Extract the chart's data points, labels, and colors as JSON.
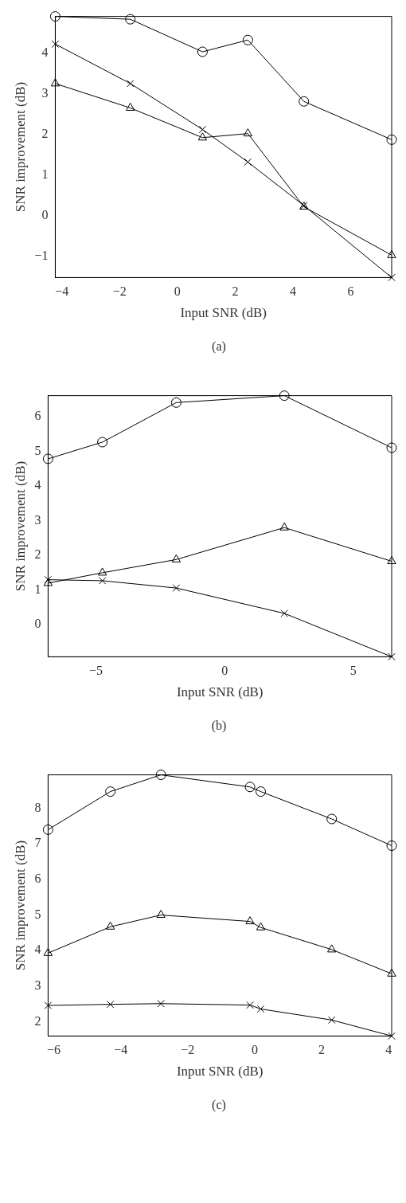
{
  "chart_data": [
    {
      "type": "line",
      "xlabel": "Input SNR (dB)",
      "ylabel": "SNR improvement (dB)",
      "annotations": [
        "(a)"
      ],
      "xlim": [
        -4.23,
        7.42
      ],
      "xticks": [
        -4,
        -2,
        0,
        2,
        4,
        6
      ],
      "ylim": [
        -1.52,
        4.9
      ],
      "yticks": [
        -1,
        0,
        1,
        2,
        3,
        4
      ],
      "legend": false,
      "x": [
        -4.23,
        -1.63,
        0.87,
        2.44,
        4.38,
        7.42
      ],
      "series": [
        {
          "marker": "circle",
          "color": "#000000",
          "values": [
            4.9,
            4.83,
            4.03,
            4.32,
            2.81,
            1.87
          ]
        },
        {
          "marker": "triangle",
          "color": "#000000",
          "values": [
            3.25,
            2.65,
            1.92,
            2.02,
            0.22,
            -0.97
          ]
        },
        {
          "marker": "cross",
          "color": "#000000",
          "values": [
            4.22,
            3.25,
            2.12,
            1.32,
            0.25,
            -1.52
          ]
        }
      ]
    },
    {
      "type": "line",
      "xlabel": "Input SNR (dB)",
      "ylabel": "SNR improvement (dB)",
      "annotations": [
        "(b)"
      ],
      "xlim": [
        -6.86,
        6.49
      ],
      "xticks": [
        -5,
        0,
        5
      ],
      "ylim": [
        -0.92,
        6.6
      ],
      "yticks": [
        0,
        1,
        2,
        3,
        4,
        5,
        6
      ],
      "legend": false,
      "x": [
        -6.86,
        -4.75,
        -1.88,
        2.32,
        6.49
      ],
      "series": [
        {
          "marker": "circle",
          "color": "#000000",
          "values": [
            4.78,
            5.26,
            6.4,
            6.6,
            5.1
          ]
        },
        {
          "marker": "triangle",
          "color": "#000000",
          "values": [
            1.2,
            1.5,
            1.88,
            2.8,
            1.83
          ]
        },
        {
          "marker": "cross",
          "color": "#000000",
          "values": [
            1.3,
            1.27,
            1.06,
            0.33,
            -0.92
          ]
        }
      ]
    },
    {
      "type": "line",
      "xlabel": "Input SNR (dB)",
      "ylabel": "SNR improvement (dB)",
      "annotations": [
        "(c)"
      ],
      "xlim": [
        -6.17,
        4.09
      ],
      "xticks": [
        -6,
        -4,
        -2,
        0,
        2,
        4
      ],
      "ylim": [
        1.6,
        8.94
      ],
      "yticks": [
        2,
        3,
        4,
        5,
        6,
        7,
        8
      ],
      "legend": false,
      "x": [
        -6.17,
        -4.31,
        -2.8,
        -0.14,
        0.18,
        2.3,
        4.09
      ],
      "series": [
        {
          "marker": "circle",
          "color": "#000000",
          "values": [
            7.4,
            8.47,
            8.94,
            8.6,
            8.47,
            7.7,
            6.95
          ]
        },
        {
          "marker": "triangle",
          "color": "#000000",
          "values": [
            3.93,
            4.67,
            5.0,
            4.82,
            4.65,
            4.03,
            3.35
          ]
        },
        {
          "marker": "cross",
          "color": "#000000",
          "values": [
            2.46,
            2.49,
            2.51,
            2.47,
            2.36,
            2.05,
            1.6
          ]
        }
      ]
    }
  ]
}
